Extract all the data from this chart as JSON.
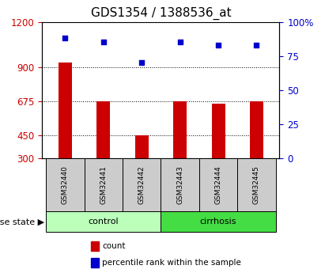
{
  "title": "GDS1354 / 1388536_at",
  "categories": [
    "GSM32440",
    "GSM32441",
    "GSM32442",
    "GSM32443",
    "GSM32444",
    "GSM32445"
  ],
  "bar_values": [
    930,
    675,
    450,
    675,
    660,
    675
  ],
  "scatter_values": [
    88,
    85,
    70,
    85,
    83,
    83
  ],
  "bar_color": "#cc0000",
  "scatter_color": "#0000cc",
  "left_ylim": [
    300,
    1200
  ],
  "left_yticks": [
    300,
    450,
    675,
    900,
    1200
  ],
  "right_ylim": [
    0,
    100
  ],
  "right_yticks": [
    0,
    25,
    50,
    75,
    100
  ],
  "right_yticklabels": [
    "0",
    "25",
    "50",
    "75",
    "100%"
  ],
  "grid_values": [
    450,
    675,
    900
  ],
  "control_n": 3,
  "cirrhosis_n": 3,
  "control_label": "control",
  "cirrhosis_label": "cirrhosis",
  "disease_state_label": "disease state",
  "legend_count": "count",
  "legend_pct": "percentile rank within the sample",
  "bg_color": "#ffffff",
  "title_fontsize": 11,
  "tick_fontsize": 8.5,
  "bar_width": 0.35
}
